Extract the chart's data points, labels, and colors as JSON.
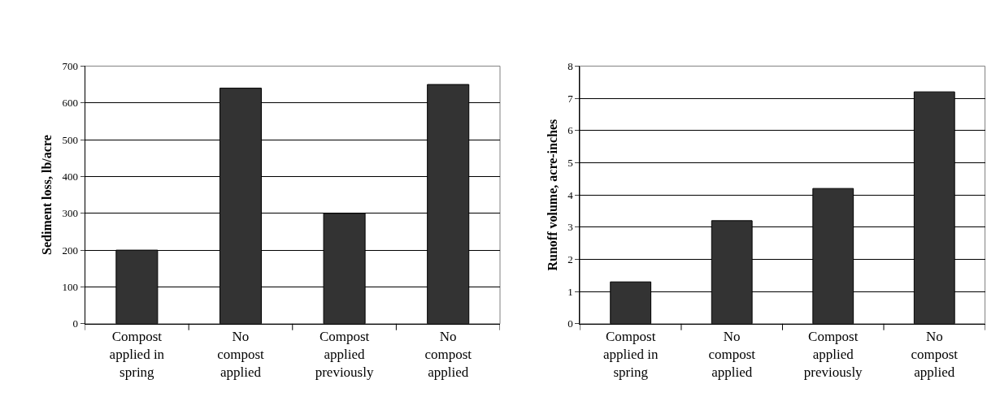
{
  "chart_data": [
    {
      "type": "bar",
      "ylabel": "Sediment loss, lb/acre",
      "categories": [
        "Compost\napplied in\nspring",
        "No\ncompost\napplied",
        "Compost\napplied\npreviously",
        "No\ncompost\napplied"
      ],
      "values": [
        200,
        640,
        300,
        650
      ],
      "color": "#333333",
      "ylim": [
        0,
        700
      ],
      "yticks": [
        0,
        100,
        200,
        300,
        400,
        500,
        600,
        700
      ],
      "grid": "y"
    },
    {
      "type": "bar",
      "ylabel": "Runoff volume, acre-inches",
      "categories": [
        "Compost\napplied in\nspring",
        "No\ncompost\napplied",
        "Compost\napplied\npreviously",
        "No\ncompost\napplied"
      ],
      "values": [
        1.3,
        3.2,
        4.2,
        7.2
      ],
      "color": "#333333",
      "ylim": [
        0,
        8
      ],
      "yticks": [
        0,
        1,
        2,
        3,
        4,
        5,
        6,
        7,
        8
      ],
      "grid": "y"
    }
  ]
}
